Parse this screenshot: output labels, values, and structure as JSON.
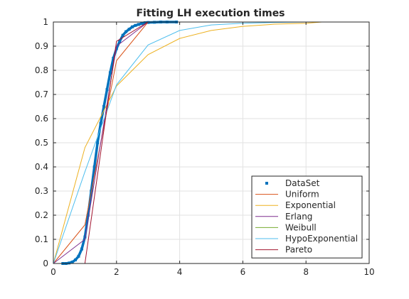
{
  "chart_data": {
    "type": "line",
    "title": "Fitting LH execution times",
    "xlabel": "",
    "ylabel": "",
    "xlim": [
      0,
      10
    ],
    "ylim": [
      0,
      1
    ],
    "xticks": [
      0,
      2,
      4,
      6,
      8,
      10
    ],
    "yticks": [
      0,
      0.1,
      0.2,
      0.3,
      0.4,
      0.5,
      0.6,
      0.7,
      0.8,
      0.9,
      1
    ],
    "grid": true,
    "legend_position": "bottom-right",
    "series": [
      {
        "name": "DataSet",
        "style": "markers",
        "color": "#0072BD",
        "x": [
          0.3,
          0.4,
          0.5,
          0.6,
          0.7,
          0.8,
          0.9,
          1.0,
          1.1,
          1.2,
          1.3,
          1.4,
          1.5,
          1.6,
          1.7,
          1.8,
          1.9,
          2.0,
          2.1,
          2.2,
          2.3,
          2.4,
          2.5,
          2.6,
          2.7,
          2.8,
          2.9,
          3.0,
          3.2,
          3.4,
          3.6,
          3.9
        ],
        "y": [
          0.0,
          0.0,
          0.002,
          0.006,
          0.015,
          0.03,
          0.06,
          0.11,
          0.2,
          0.3,
          0.4,
          0.5,
          0.58,
          0.65,
          0.72,
          0.79,
          0.85,
          0.89,
          0.92,
          0.945,
          0.96,
          0.97,
          0.98,
          0.986,
          0.99,
          0.994,
          0.997,
          0.998,
          0.999,
          1.0,
          1.0,
          1.0
        ]
      },
      {
        "name": "Uniform",
        "color": "#D95319",
        "x": [
          0,
          1,
          2,
          3,
          4,
          10
        ],
        "y": [
          0,
          0.16,
          0.84,
          1,
          1,
          1
        ]
      },
      {
        "name": "Exponential",
        "color": "#EDB120",
        "x": [
          0,
          1,
          2,
          3,
          4,
          5,
          6,
          7,
          8,
          8.5
        ],
        "y": [
          0,
          0.48,
          0.735,
          0.865,
          0.932,
          0.965,
          0.982,
          0.991,
          0.995,
          1
        ]
      },
      {
        "name": "Erlang",
        "color": "#7E2F8E",
        "x": [
          0,
          1,
          2,
          3,
          4,
          4.5
        ],
        "y": [
          0,
          0.1,
          0.9,
          1,
          1,
          1
        ]
      },
      {
        "name": "Weibull",
        "color": "#77AC30",
        "x": [
          0,
          10
        ],
        "y": [
          0,
          0
        ]
      },
      {
        "name": "HypoExponential",
        "color": "#4DBEEE",
        "x": [
          0,
          1,
          2,
          3,
          4,
          5,
          6,
          7,
          8
        ],
        "y": [
          0,
          0.38,
          0.74,
          0.905,
          0.965,
          0.988,
          0.995,
          0.998,
          1
        ]
      },
      {
        "name": "Pareto",
        "color": "#A2142F",
        "x": [
          0,
          1,
          2,
          3,
          4,
          10
        ],
        "y": [
          0,
          0,
          0.92,
          1,
          1,
          1
        ]
      }
    ]
  }
}
